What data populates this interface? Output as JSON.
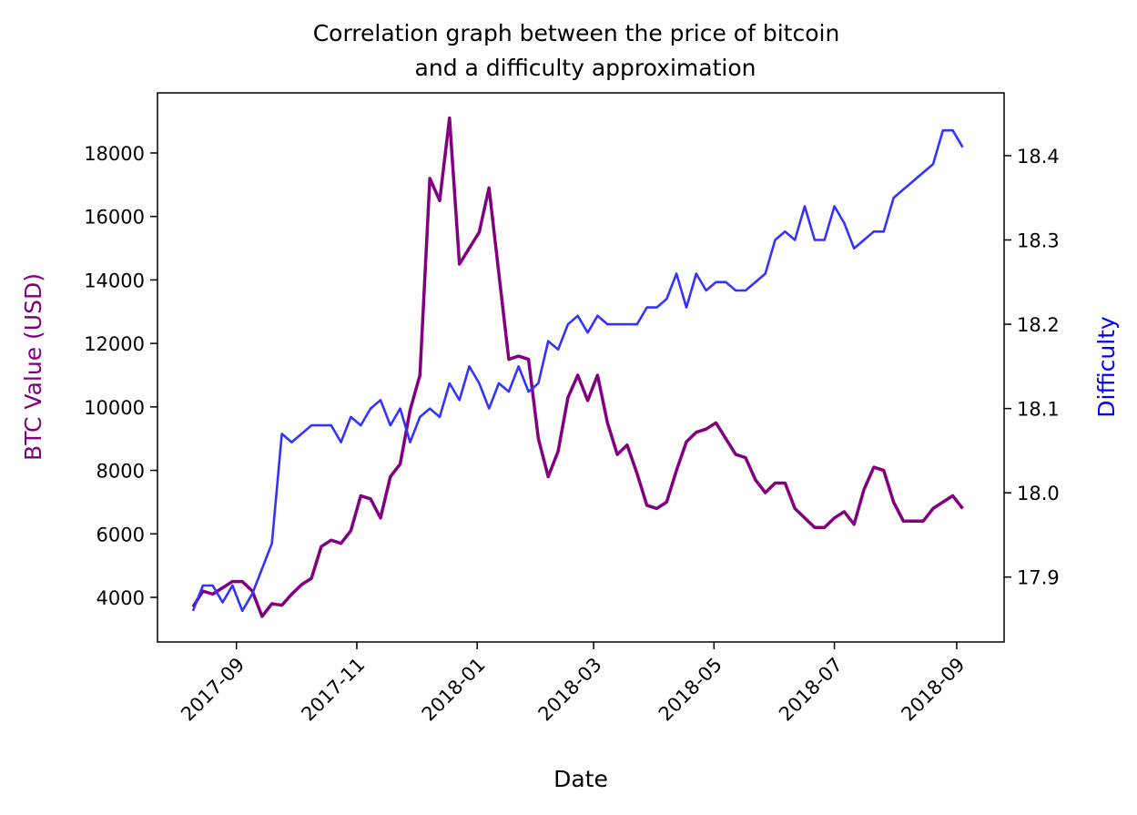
{
  "chart_data": {
    "type": "line",
    "title": [
      "Correlation graph between the price of bitcoin",
      "and a difficulty approximation"
    ],
    "xlabel": "Date",
    "ylabel": "BTC Value (USD)",
    "y2label": "Difficulty",
    "ylabel_color": "#800080",
    "y2label_color": "#0000ff",
    "x": [
      17388,
      17393,
      17398,
      17403,
      17408,
      17413,
      17418,
      17423,
      17428,
      17433,
      17438,
      17443,
      17448,
      17453,
      17458,
      17463,
      17468,
      17473,
      17478,
      17483,
      17488,
      17493,
      17498,
      17503,
      17508,
      17513,
      17518,
      17523,
      17528,
      17533,
      17538,
      17543,
      17548,
      17553,
      17558,
      17563,
      17568,
      17573,
      17578,
      17583,
      17588,
      17593,
      17598,
      17603,
      17608,
      17613,
      17618,
      17623,
      17628,
      17633,
      17638,
      17643,
      17648,
      17653,
      17658,
      17663,
      17668,
      17673,
      17678,
      17683,
      17688,
      17693,
      17698,
      17703,
      17708,
      17713,
      17718,
      17723,
      17728,
      17733,
      17738,
      17743,
      17748,
      17753,
      17758,
      17763,
      17768,
      17773,
      17778
    ],
    "series": [
      {
        "name": "BTC Value (USD)",
        "color": "#800080",
        "width": 3.5,
        "values": [
          3700,
          4200,
          4100,
          4300,
          4500,
          4500,
          4200,
          3400,
          3800,
          3750,
          4100,
          4400,
          4600,
          5600,
          5800,
          5700,
          6100,
          7200,
          7100,
          6500,
          7800,
          8200,
          9900,
          11000,
          17200,
          16500,
          19100,
          14500,
          15000,
          15500,
          16900,
          14200,
          11500,
          11600,
          11500,
          9000,
          7800,
          8600,
          10300,
          11000,
          10200,
          11000,
          9500,
          8500,
          8800,
          7900,
          6900,
          6800,
          7000,
          8000,
          8900,
          9200,
          9300,
          9500,
          9000,
          8500,
          8400,
          7700,
          7300,
          7600,
          7600,
          6800,
          6500,
          6200,
          6200,
          6500,
          6700,
          6300,
          7400,
          8100,
          8000,
          7000,
          6400,
          6400,
          6400,
          6800,
          7000,
          7200,
          6800
        ]
      },
      {
        "name": "Difficulty",
        "color": "#3333ff",
        "width": 2.6,
        "axis": "y2",
        "values": [
          17.86,
          17.89,
          17.89,
          17.87,
          17.89,
          17.86,
          17.88,
          17.91,
          17.94,
          18.07,
          18.06,
          18.07,
          18.08,
          18.08,
          18.08,
          18.06,
          18.09,
          18.08,
          18.1,
          18.11,
          18.08,
          18.1,
          18.06,
          18.09,
          18.1,
          18.09,
          18.13,
          18.11,
          18.15,
          18.13,
          18.1,
          18.13,
          18.12,
          18.15,
          18.12,
          18.13,
          18.18,
          18.17,
          18.2,
          18.21,
          18.19,
          18.21,
          18.2,
          18.2,
          18.2,
          18.2,
          18.22,
          18.22,
          18.23,
          18.26,
          18.22,
          18.26,
          18.24,
          18.25,
          18.25,
          18.24,
          18.24,
          18.25,
          18.26,
          18.3,
          18.31,
          18.3,
          18.34,
          18.3,
          18.3,
          18.34,
          18.32,
          18.29,
          18.3,
          18.31,
          18.31,
          18.35,
          18.36,
          18.37,
          18.38,
          18.39,
          18.43,
          18.43,
          18.41
        ]
      }
    ],
    "xlim": [
      17370,
      17799
    ],
    "xticks": [
      {
        "value": 17410,
        "label": "2017-09"
      },
      {
        "value": 17471,
        "label": "2017-11"
      },
      {
        "value": 17532,
        "label": "2018-01"
      },
      {
        "value": 17591,
        "label": "2018-03"
      },
      {
        "value": 17652,
        "label": "2018-05"
      },
      {
        "value": 17713,
        "label": "2018-07"
      },
      {
        "value": 17775,
        "label": "2018-09"
      }
    ],
    "ylim": [
      2594,
      19893
    ],
    "yticks": [
      4000,
      6000,
      8000,
      10000,
      12000,
      14000,
      16000,
      18000
    ],
    "y2lim": [
      17.823,
      18.4745
    ],
    "y2ticks": [
      17.9,
      {
        "value": 18,
        "label": "18.0"
      },
      18.1,
      18.2,
      18.3,
      18.4
    ]
  }
}
